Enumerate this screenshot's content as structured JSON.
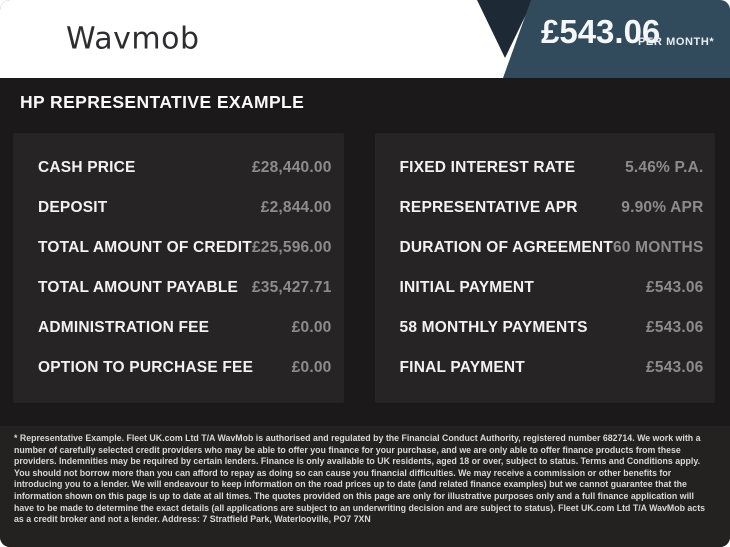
{
  "header": {
    "logo_text": "Wavmob",
    "price": "£543.06",
    "price_suffix": "PER MONTH*"
  },
  "section": {
    "title": "HP REPRESENTATIVE EXAMPLE"
  },
  "finance_table": {
    "left_column": [
      {
        "label": "CASH PRICE",
        "value": "£28,440.00"
      },
      {
        "label": "DEPOSIT",
        "value": "£2,844.00"
      },
      {
        "label": "TOTAL AMOUNT OF CREDIT",
        "value": "£25,596.00"
      },
      {
        "label": "TOTAL AMOUNT PAYABLE",
        "value": "£35,427.71"
      },
      {
        "label": "ADMINISTRATION FEE",
        "value": "£0.00"
      },
      {
        "label": "OPTION TO PURCHASE FEE",
        "value": "£0.00"
      }
    ],
    "right_column": [
      {
        "label": "FIXED INTEREST RATE",
        "value": "5.46% P.A."
      },
      {
        "label": "REPRESENTATIVE APR",
        "value": "9.90% APR"
      },
      {
        "label": "DURATION OF AGREEMENT",
        "value": "60 MONTHS"
      },
      {
        "label": "INITIAL PAYMENT",
        "value": "£543.06"
      },
      {
        "label": "58 MONTHLY PAYMENTS",
        "value": "£543.06"
      },
      {
        "label": "FINAL PAYMENT",
        "value": "£543.06"
      }
    ]
  },
  "footer": {
    "disclaimer": "* Representative Example. Fleet UK.com Ltd T/A WavMob is authorised and regulated by the Financial Conduct Authority, registered number 682714. We work with a number of carefully selected credit providers who may be able to offer you finance for your purchase, and we are only able to offer finance products from these providers. Indemnities may be required by certain lenders. Finance is only available to UK residents, aged 18 or over, subject to status. Terms and Conditions apply. You should not borrow more than you can afford to repay as doing so can cause you financial difficulties. We may receive a commission or other benefits for introducing you to a lender. We will endeavour to keep information on the road prices up to date (and related finance examples) but we cannot guarantee that the information shown on this page is up to date at all times. The quotes provided on this page are only for illustrative purposes only and a full finance application will have to be made to determine the exact details (all applications are subject to an underwriting decision and are subject to status). Fleet UK.com Ltd T/A WavMob acts as a credit broker and not a lender. Address: 7 Stratfield Park, Waterlooville, PO7 7XN"
  },
  "colors": {
    "accent_blue": "#314a5c",
    "accent_blue_shadow": "#1d2a36",
    "page_background": "#1c191a",
    "panel_background": "#272425",
    "footer_background": "#242121",
    "label_text": "#f2f2f2",
    "value_text": "#8c8c8c",
    "header_background": "#ffffff"
  }
}
